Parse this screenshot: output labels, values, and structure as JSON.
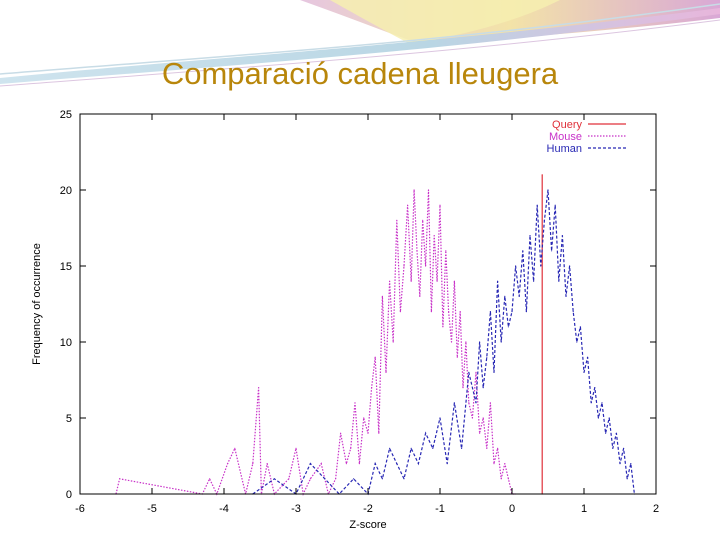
{
  "slide": {
    "title": "Comparació cadena lleugera"
  },
  "chart_data": {
    "type": "line",
    "title": "",
    "xlabel": "Z-score",
    "ylabel": "Frequency of occurrence",
    "xlim": [
      -6,
      2
    ],
    "ylim": [
      0,
      25
    ],
    "x_ticks": [
      -6,
      -5,
      -4,
      -3,
      -2,
      -1,
      0,
      1,
      2
    ],
    "y_ticks": [
      0,
      5,
      10,
      15,
      20,
      25
    ],
    "grid": false,
    "legend_position": "top-right",
    "series": [
      {
        "name": "Query",
        "color": "#e0303a",
        "style": "solid",
        "x": [
          0.42,
          0.42
        ],
        "y": [
          0,
          21
        ]
      },
      {
        "name": "Mouse",
        "color": "#c832c8",
        "style": "dotted",
        "x": [
          -5.5,
          -5.45,
          -4.3,
          -4.2,
          -4.1,
          -3.95,
          -3.85,
          -3.7,
          -3.6,
          -3.52,
          -3.48,
          -3.4,
          -3.3,
          -3.1,
          -3.0,
          -2.9,
          -2.8,
          -2.65,
          -2.55,
          -2.45,
          -2.38,
          -2.3,
          -2.24,
          -2.18,
          -2.12,
          -2.06,
          -2.0,
          -1.95,
          -1.9,
          -1.85,
          -1.8,
          -1.75,
          -1.7,
          -1.65,
          -1.6,
          -1.55,
          -1.5,
          -1.45,
          -1.4,
          -1.36,
          -1.32,
          -1.28,
          -1.24,
          -1.2,
          -1.16,
          -1.12,
          -1.08,
          -1.04,
          -1.0,
          -0.96,
          -0.92,
          -0.88,
          -0.84,
          -0.8,
          -0.76,
          -0.72,
          -0.68,
          -0.64,
          -0.6,
          -0.55,
          -0.5,
          -0.45,
          -0.4,
          -0.35,
          -0.3,
          -0.25,
          -0.2,
          -0.15,
          -0.1,
          -0.05,
          0.0,
          0.05
        ],
        "y": [
          0,
          1,
          0,
          1,
          0,
          2,
          3,
          0,
          2,
          7,
          0,
          2,
          0,
          1,
          3,
          0,
          1,
          2,
          0,
          1,
          4,
          2,
          3,
          6,
          2,
          5,
          4,
          7,
          9,
          4,
          13,
          8,
          14,
          10,
          18,
          12,
          15,
          19,
          14,
          20,
          16,
          13,
          18,
          15,
          20,
          12,
          17,
          14,
          19,
          11,
          16,
          12,
          10,
          14,
          9,
          12,
          7,
          10,
          6,
          5,
          8,
          4,
          5,
          3,
          6,
          2,
          3,
          1,
          2,
          1,
          0,
          0
        ]
      },
      {
        "name": "Human",
        "color": "#2828b4",
        "style": "dashed",
        "x": [
          -3.6,
          -3.3,
          -3.0,
          -2.8,
          -2.6,
          -2.4,
          -2.2,
          -2.0,
          -1.9,
          -1.8,
          -1.7,
          -1.6,
          -1.5,
          -1.4,
          -1.3,
          -1.2,
          -1.1,
          -1.0,
          -0.9,
          -0.8,
          -0.7,
          -0.6,
          -0.5,
          -0.45,
          -0.4,
          -0.35,
          -0.3,
          -0.25,
          -0.2,
          -0.15,
          -0.1,
          -0.05,
          0.0,
          0.05,
          0.1,
          0.15,
          0.2,
          0.25,
          0.3,
          0.35,
          0.4,
          0.45,
          0.5,
          0.55,
          0.6,
          0.65,
          0.7,
          0.75,
          0.8,
          0.85,
          0.9,
          0.95,
          1.0,
          1.05,
          1.1,
          1.15,
          1.2,
          1.25,
          1.3,
          1.35,
          1.4,
          1.45,
          1.5,
          1.55,
          1.6,
          1.65,
          1.7
        ],
        "y": [
          0,
          1,
          0,
          2,
          1,
          0,
          1,
          0,
          2,
          1,
          3,
          2,
          1,
          3,
          2,
          4,
          3,
          5,
          2,
          6,
          3,
          8,
          6,
          10,
          7,
          9,
          12,
          8,
          14,
          10,
          13,
          11,
          12,
          15,
          13,
          16,
          12,
          17,
          14,
          19,
          15,
          18,
          20,
          16,
          19,
          14,
          17,
          13,
          15,
          12,
          10,
          11,
          8,
          9,
          6,
          7,
          5,
          6,
          4,
          5,
          3,
          4,
          2,
          3,
          1,
          2,
          0
        ]
      }
    ]
  }
}
